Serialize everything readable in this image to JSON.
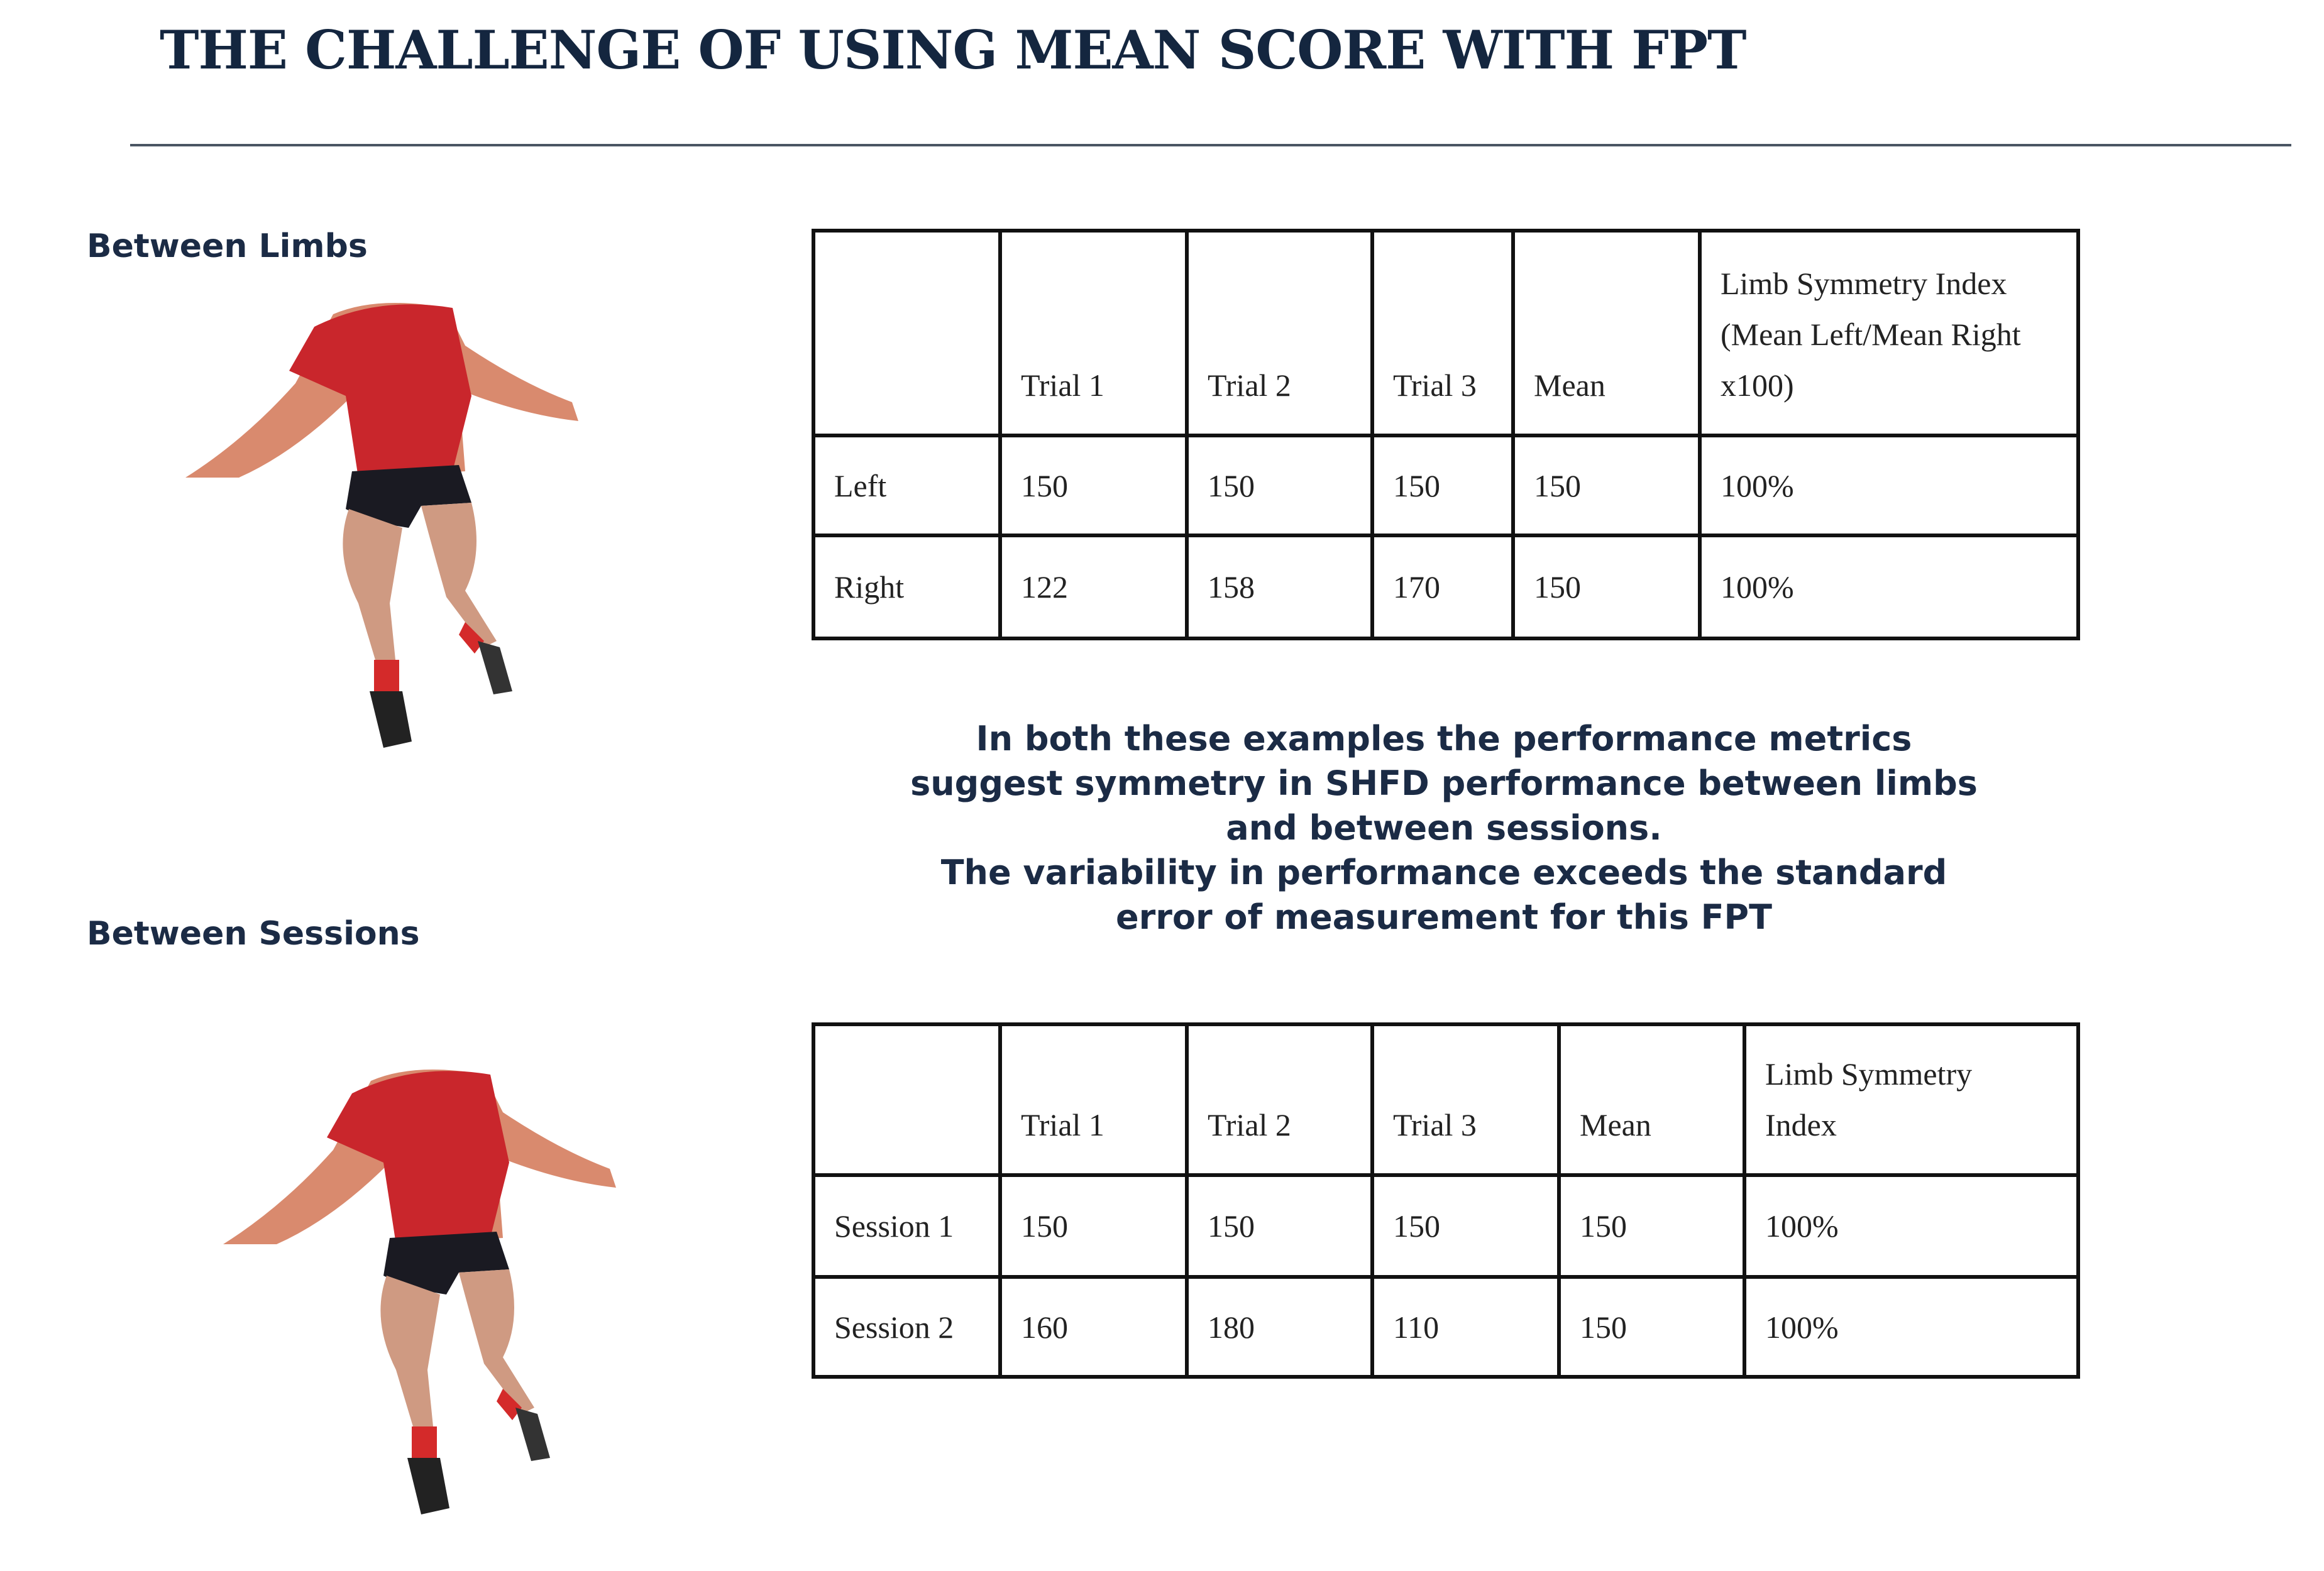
{
  "header": {
    "title": "THE CHALLENGE OF USING MEAN SCORE WITH FPT"
  },
  "sections": [
    {
      "label": "Between Limbs"
    },
    {
      "label": "Between Sessions"
    }
  ],
  "tables": [
    {
      "columns": [
        "Trial 1",
        "Trial 2",
        "Trial 3",
        "Mean",
        "Limb Symmetry Index (Mean Left/Mean Right x100)"
      ],
      "rows": [
        {
          "label": "Left",
          "cells": [
            "150",
            "150",
            "150",
            "150",
            "100%"
          ]
        },
        {
          "label": "Right",
          "cells": [
            "122",
            "158",
            "170",
            "150",
            "100%"
          ]
        }
      ]
    },
    {
      "columns": [
        "Trial 1",
        "Trial 2",
        "Trial 3",
        "Mean",
        "Limb Symmetry Index"
      ],
      "rows": [
        {
          "label": "Session 1",
          "cells": [
            "150",
            "150",
            "150",
            "150",
            "100%"
          ]
        },
        {
          "label": "Session 2",
          "cells": [
            "160",
            "180",
            "110",
            "150",
            "100%"
          ]
        }
      ]
    }
  ],
  "note": {
    "lines": [
      "In both these examples the performance metrics",
      "suggest symmetry in SHFD performance between limbs",
      "and  between sessions.",
      "The variability in performance exceeds the standard",
      "error of measurement for this FPT"
    ]
  }
}
